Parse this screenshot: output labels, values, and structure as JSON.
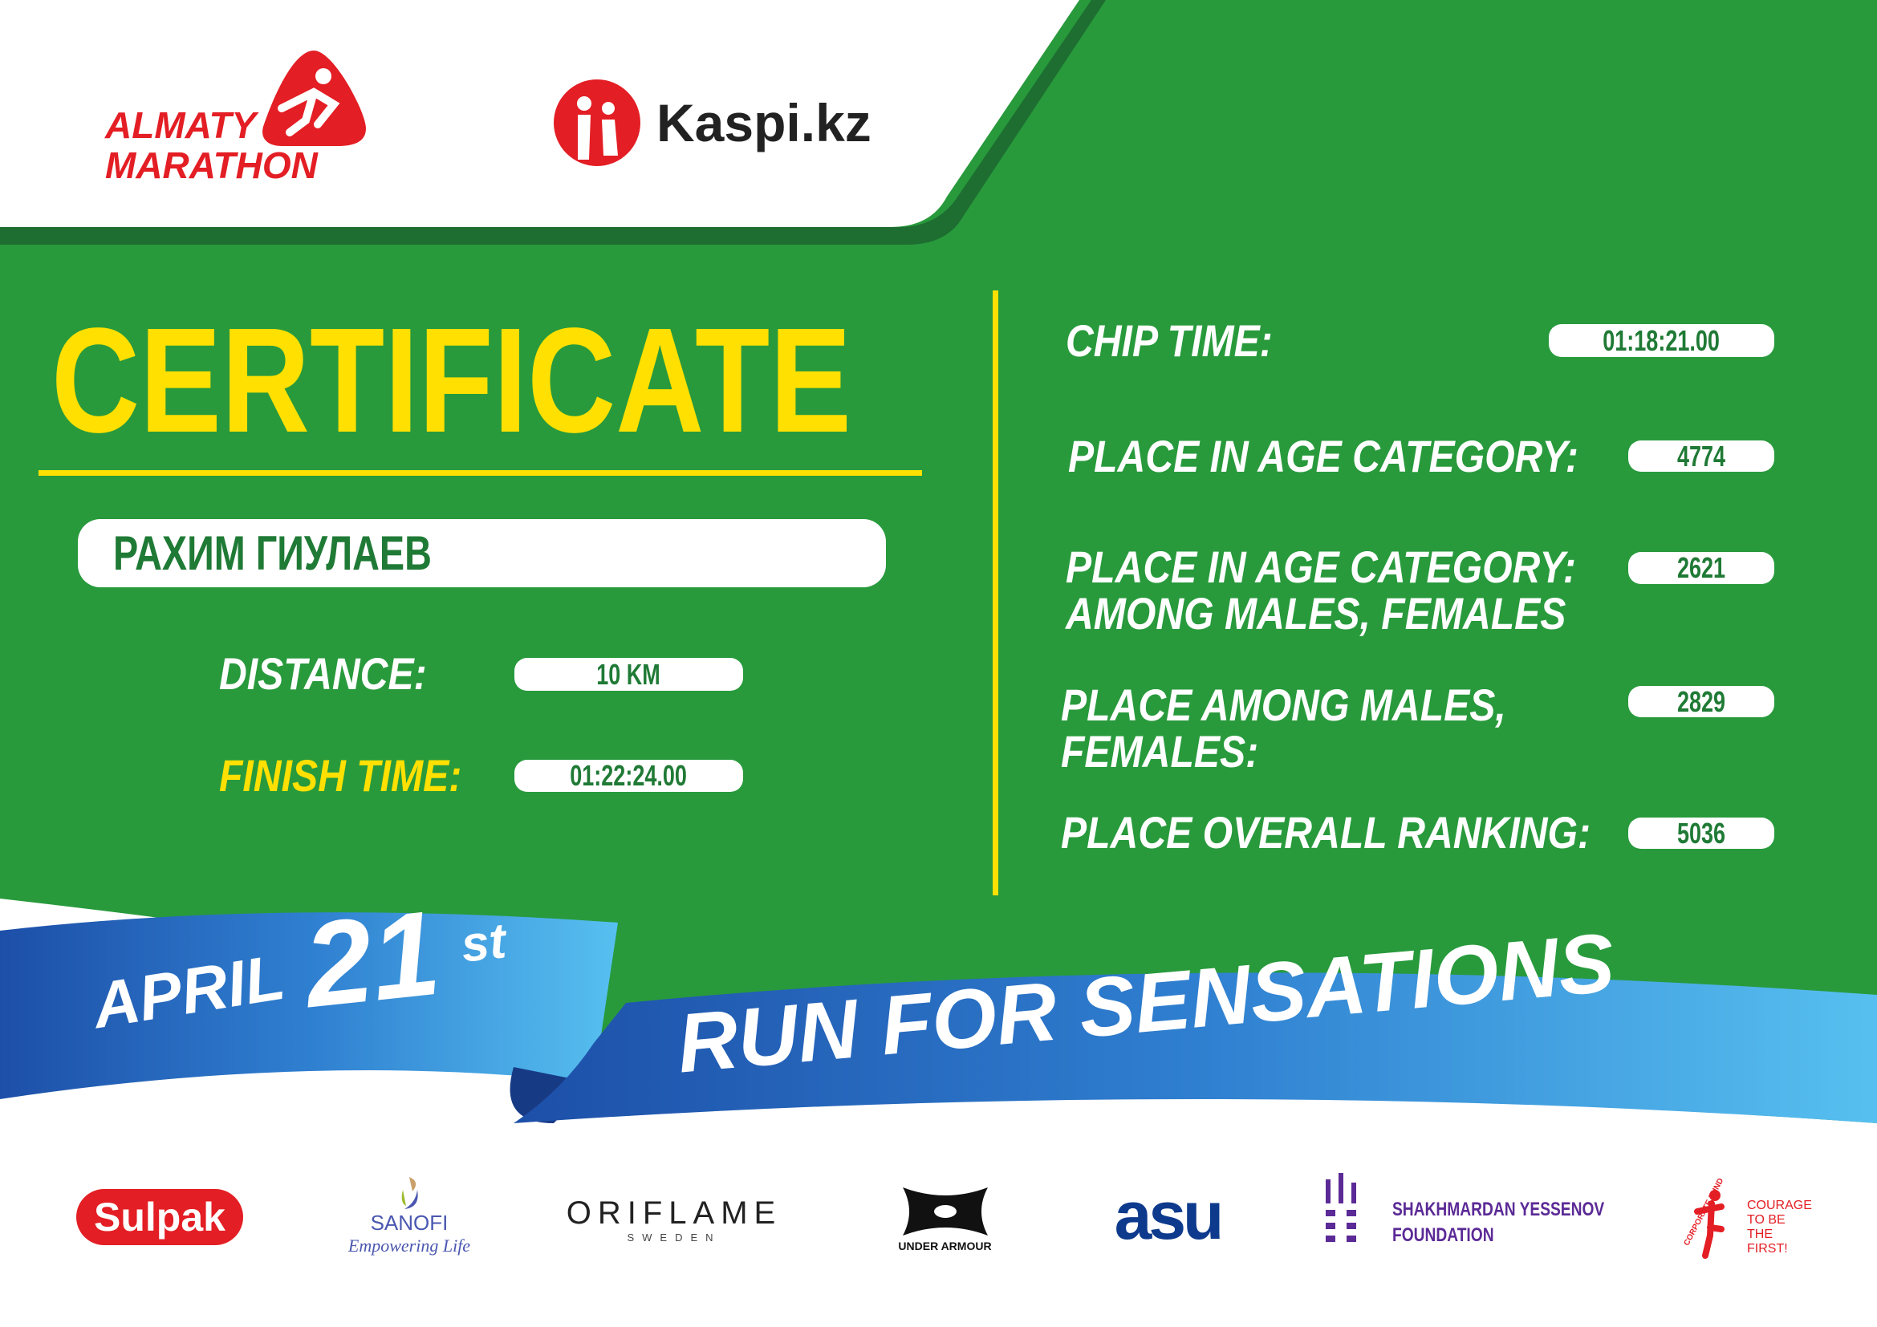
{
  "header": {
    "event_logo": "ALMATY MARATHON",
    "event_logo_line1": "ALMATY",
    "event_logo_line2": "MARATHON",
    "sponsor_logo": "Kaspi.kz"
  },
  "title": "CERTIFICATE",
  "participant": {
    "name": "РАХИМ ГИУЛАЕВ"
  },
  "left_fields": [
    {
      "label": "DISTANCE:",
      "value": "10 KM"
    },
    {
      "label": "FINISH TIME:",
      "value": "01:22:24.00"
    }
  ],
  "right_fields": [
    {
      "label": "CHIP TIME:",
      "value": "01:18:21.00"
    },
    {
      "label": "PLACE IN AGE CATEGORY:",
      "value": "4774"
    },
    {
      "label": "PLACE IN AGE CATEGORY:",
      "label2": "AMONG MALES, FEMALES",
      "value": "2621"
    },
    {
      "label": "PLACE AMONG MALES,",
      "label2": "FEMALES:",
      "value": "2829"
    },
    {
      "label": "PLACE OVERALL RANKING:",
      "value": "5036"
    }
  ],
  "ribbon": {
    "month": "APRIL",
    "day": "21",
    "suffix": "st",
    "slogan": "RUN FOR SENSATIONS"
  },
  "sponsors": {
    "sulpak": "Sulpak",
    "sanofi": "SANOFI",
    "sanofi_tag": "Empowering Life",
    "oriflame": "ORIFLAME",
    "oriflame_sub": "SWEDEN",
    "under_armour": "UNDER ARMOUR",
    "asu": "asu",
    "yessenov1": "SHAKHMARDAN YESSENOV",
    "yessenov2": "FOUNDATION",
    "courage_fund": "CORPORATE FUND",
    "courage1": "COURAGE",
    "courage2": "TO BE",
    "courage3": "THE FIRST!"
  },
  "colors": {
    "green": "#289a3c",
    "dark_green": "#1d6e30",
    "yellow": "#ffe000",
    "red": "#e31e24",
    "blue": "#2f7fd0"
  }
}
